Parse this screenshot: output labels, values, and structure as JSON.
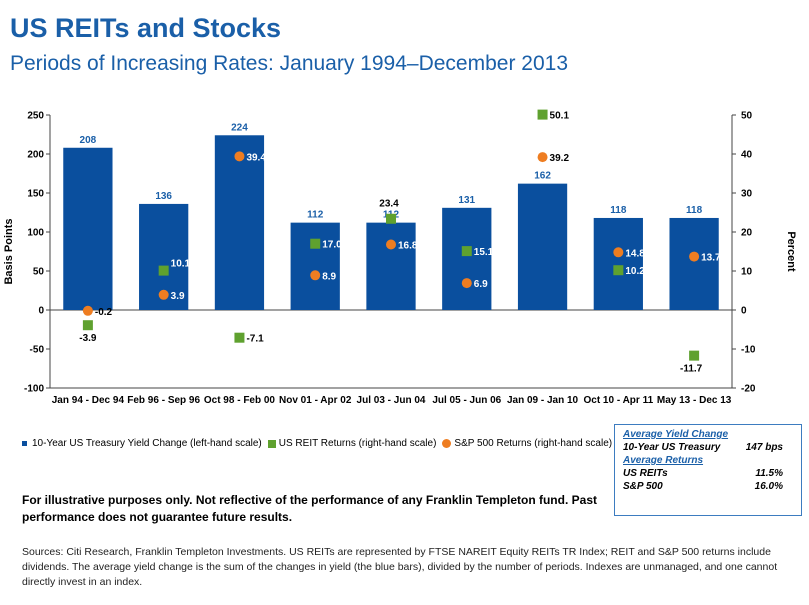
{
  "header": {
    "title": "US REITs and Stocks",
    "subtitle": "Periods of Increasing Rates: January 1994–December 2013"
  },
  "chart_data": {
    "type": "bar",
    "categories": [
      "Jan 94 - Dec 94",
      "Feb 96 - Sep 96",
      "Oct 98 - Feb 00",
      "Nov 01 - Apr 02",
      "Jul 03 - Jun 04",
      "Jul 05 - Jun 06",
      "Jan 09 - Jan 10",
      "Oct 10 - Apr 11",
      "May 13 - Dec 13"
    ],
    "ylabel": "Basis Points",
    "y2label": "Percent",
    "ylim": [
      -100,
      250
    ],
    "y2lim": [
      -20,
      50
    ],
    "yticks": [
      -100,
      -50,
      0,
      50,
      100,
      150,
      200,
      250
    ],
    "y2ticks": [
      -20,
      -10,
      0,
      10,
      20,
      30,
      40,
      50
    ],
    "series": [
      {
        "name": "10-Year US Treasury Yield Change (left-hand scale)",
        "type": "bar",
        "axis": "left",
        "color": "#0a4f9e",
        "values": [
          208,
          136,
          224,
          112,
          112,
          131,
          162,
          118,
          118
        ],
        "labels": [
          "208",
          "136",
          "224",
          "112",
          "112",
          "131",
          "162",
          "118",
          "118"
        ]
      },
      {
        "name": "US REIT Returns (right-hand scale)",
        "type": "square",
        "axis": "right",
        "color": "#5fa12f",
        "values": [
          -3.9,
          10.1,
          -7.1,
          17.0,
          23.4,
          15.1,
          50.1,
          10.2,
          -11.7
        ],
        "labels": [
          "-3.9",
          "10.1",
          "-7.1",
          "17.0",
          "23.4",
          "15.1",
          "50.1",
          "10.2",
          "-11.7"
        ]
      },
      {
        "name": "S&P 500 Returns (right-hand scale)",
        "type": "dot",
        "axis": "right",
        "color": "#ee7d21",
        "values": [
          -0.2,
          3.9,
          39.4,
          8.9,
          16.8,
          6.9,
          39.2,
          14.8,
          13.7
        ],
        "labels": [
          "-0.2",
          "3.9",
          "39.4",
          "8.9",
          "16.8",
          "6.9",
          "39.2",
          "14.8",
          "13.7"
        ]
      }
    ],
    "grid": false,
    "legend": "bottom"
  },
  "legend": {
    "items": [
      {
        "label": "10-Year US Treasury Yield Change (left-hand scale)"
      },
      {
        "label": "US REIT Returns (right-hand scale)"
      },
      {
        "label": "S&P 500 Returns (right-hand scale)"
      }
    ]
  },
  "summary": {
    "yield_heading": "Average Yield Change",
    "yield_label": "10-Year US Treasury",
    "yield_value": "147 bps",
    "returns_heading": "Average Returns",
    "reits_label": "US REITs",
    "reits_value": "11.5%",
    "sp_label": "S&P 500",
    "sp_value": "16.0%"
  },
  "disclaimer": "For illustrative purposes only. Not reflective of the performance of any Franklin Templeton fund. Past performance does not guarantee future results.",
  "sources": "Sources: Citi Research, Franklin Templeton Investments. US REITs are represented by FTSE NAREIT Equity REITs TR Index; REIT and S&P 500 returns include dividends. The average yield change is the sum of the changes in yield (the blue bars), divided by the number of periods. Indexes are unmanaged, and one cannot directly invest in an index."
}
